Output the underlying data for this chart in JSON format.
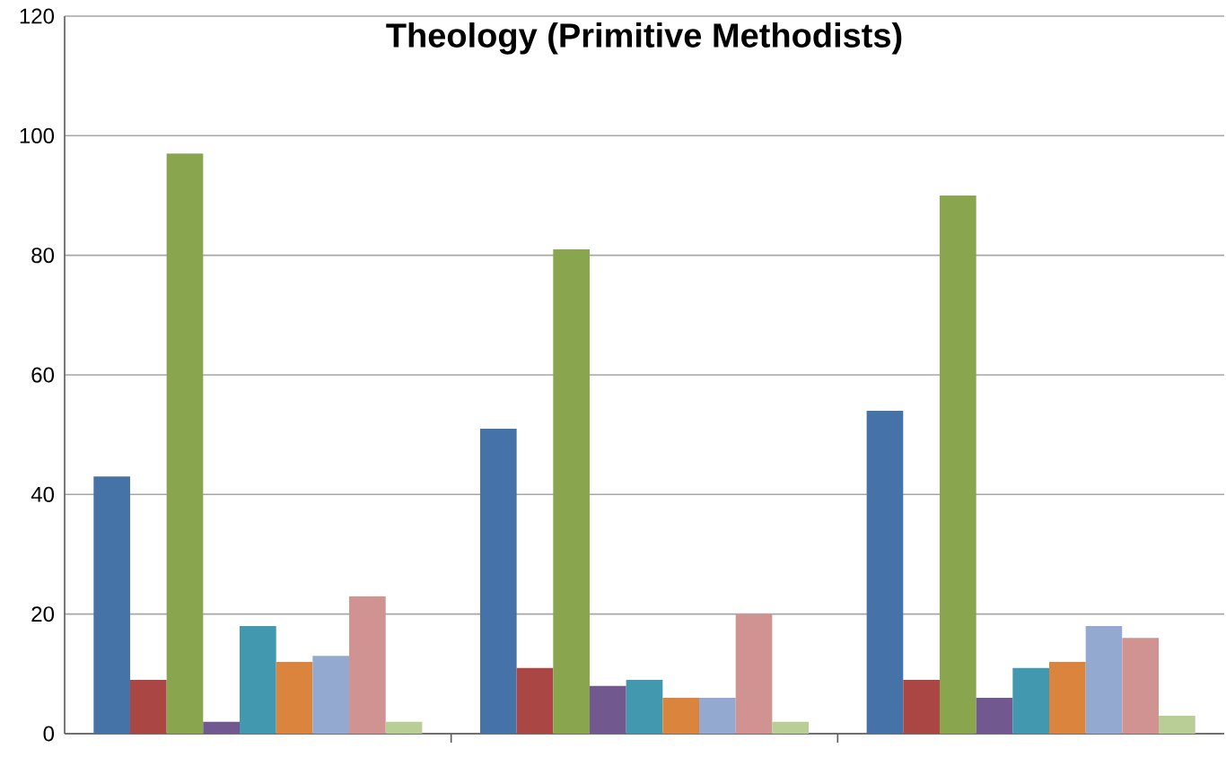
{
  "chart_data": {
    "type": "bar",
    "title": "Theology (Primitive Methodists)",
    "categories": [
      null,
      null,
      null
    ],
    "series": [
      {
        "color": "#4572a7",
        "values": [
          43,
          51,
          54
        ]
      },
      {
        "color": "#aa4643",
        "values": [
          9,
          11,
          9
        ]
      },
      {
        "color": "#89a54e",
        "values": [
          97,
          81,
          90
        ]
      },
      {
        "color": "#71588f",
        "values": [
          2,
          8,
          6
        ]
      },
      {
        "color": "#4198af",
        "values": [
          18,
          9,
          11
        ]
      },
      {
        "color": "#db843d",
        "values": [
          12,
          6,
          12
        ]
      },
      {
        "color": "#93a9cf",
        "values": [
          13,
          6,
          18
        ]
      },
      {
        "color": "#d19392",
        "values": [
          23,
          20,
          16
        ]
      },
      {
        "color": "#b9cd96",
        "values": [
          2,
          2,
          3
        ]
      }
    ],
    "ylim": [
      0,
      120
    ],
    "yticks": [
      0,
      20,
      40,
      60,
      80,
      100,
      120
    ],
    "grid": "y",
    "tick_labels": "y"
  }
}
